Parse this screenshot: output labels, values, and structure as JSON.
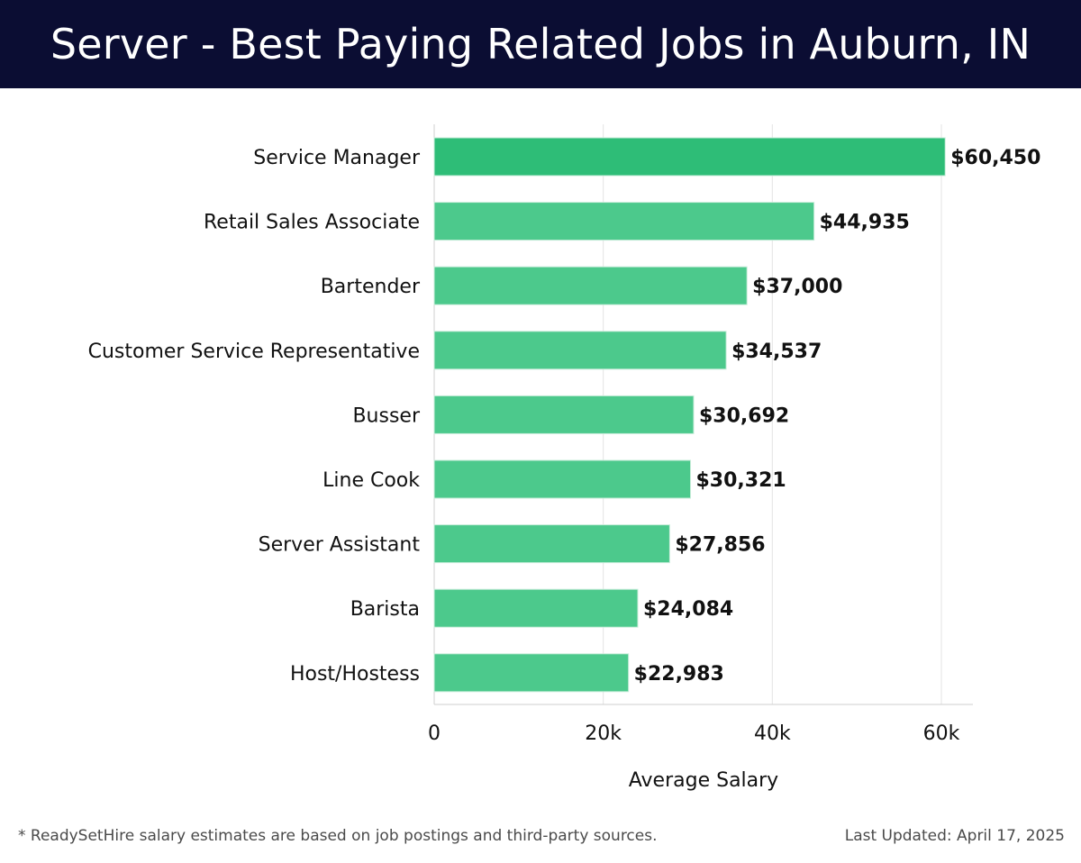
{
  "header": {
    "title": "Server - Best Paying Related Jobs in Auburn, IN"
  },
  "chart_data": {
    "type": "bar",
    "orientation": "horizontal",
    "categories": [
      "Service Manager",
      "Retail Sales Associate",
      "Bartender",
      "Customer Service Representative",
      "Busser",
      "Line Cook",
      "Server Assistant",
      "Barista",
      "Host/Hostess"
    ],
    "values": [
      60450,
      44935,
      37000,
      34537,
      30692,
      30321,
      27856,
      24084,
      22983
    ],
    "value_labels": [
      "$60,450",
      "$44,935",
      "$37,000",
      "$34,537",
      "$30,692",
      "$30,321",
      "$27,856",
      "$24,084",
      "$22,983"
    ],
    "xlabel": "Average Salary",
    "ylabel": "",
    "xlim": [
      0,
      63500
    ],
    "x_ticks": [
      0,
      20000,
      40000,
      60000
    ],
    "x_tick_labels": [
      "0",
      "20k",
      "40k",
      "60k"
    ],
    "grid": true,
    "bar_color": "#2ebd77",
    "colors": {
      "top_bar": "#2ebd77",
      "other_bars": "#4cc98c"
    }
  },
  "footer": {
    "note": "* ReadySetHire salary estimates are based on job postings and third-party sources.",
    "updated": "Last Updated: April 17, 2025"
  }
}
